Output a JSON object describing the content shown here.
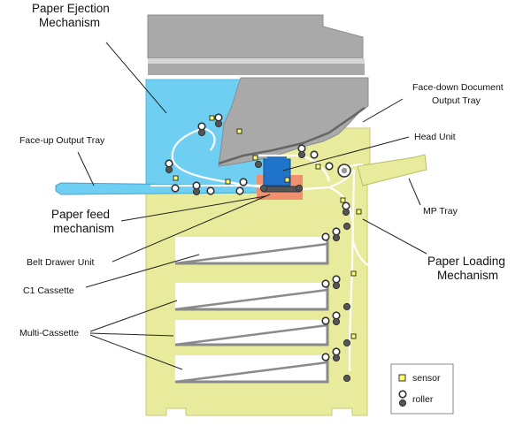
{
  "labels": {
    "paper_ejection_line1": "Paper Ejection",
    "paper_ejection_line2": "Mechanism",
    "face_up_tray": "Face-up Output Tray",
    "face_down_line1": "Face-down Document",
    "face_down_line2": "Output Tray",
    "head_unit": "Head Unit",
    "paper_feed_line1": "Paper feed",
    "paper_feed_line2": "mechanism",
    "mp_tray": "MP Tray",
    "belt_drawer_unit": "Belt Drawer Unit",
    "paper_loading_line1": "Paper Loading",
    "paper_loading_line2": "Mechanism",
    "c1_cassette": "C1 Cassette",
    "multi_cassette": "Multi-Cassette"
  },
  "legend": {
    "sensor": "sensor",
    "roller": "roller"
  },
  "colors": {
    "body": "#e8eb9b",
    "ejection_area": "#6fcff3",
    "scanner": "#a9a9a9",
    "head_unit": "#1f73c8",
    "feed_area": "#f0906e",
    "sensor": "#ffff66"
  }
}
